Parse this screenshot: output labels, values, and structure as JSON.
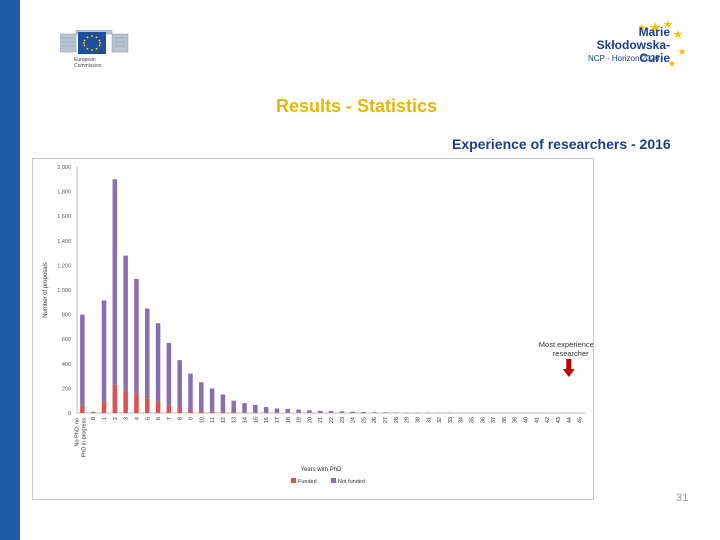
{
  "header": {
    "ec_logo_text": "European\nCommission",
    "msca_name_line1": "Marie",
    "msca_name_line2": "Skłodowska-Curie",
    "msca_sub": "NCP - Horizon 2020"
  },
  "page_title": "Results - Statistics",
  "page_number": "31",
  "colors": {
    "funded": "#d9534f",
    "not_funded": "#8a6fb0",
    "accent_blue": "#1f5aa6",
    "title_gold": "#e6b800"
  },
  "chart_data": {
    "type": "bar",
    "title": "Experience of researchers - 2016",
    "xlabel": "Years with PhD",
    "ylabel": "Number of proposals",
    "ylim": [
      0,
      2000
    ],
    "yticks": [
      0,
      200,
      400,
      600,
      800,
      1000,
      1200,
      1400,
      1600,
      1800,
      2000
    ],
    "stacked": true,
    "categories": [
      "No PhD, no PhD in progress",
      "0",
      "1",
      "2",
      "3",
      "4",
      "5",
      "6",
      "7",
      "8",
      "9",
      "10",
      "11",
      "12",
      "13",
      "14",
      "15",
      "16",
      "17",
      "18",
      "19",
      "20",
      "21",
      "22",
      "23",
      "24",
      "25",
      "26",
      "27",
      "28",
      "29",
      "30",
      "31",
      "32",
      "33",
      "34",
      "35",
      "36",
      "37",
      "38",
      "39",
      "40",
      "41",
      "42",
      "43",
      "44",
      "45"
    ],
    "series": [
      {
        "name": "Funded",
        "color": "#d9534f",
        "values": [
          60,
          5,
          95,
          230,
          180,
          160,
          120,
          90,
          60,
          45,
          30,
          20,
          15,
          10,
          8,
          6,
          5,
          4,
          3,
          2,
          2,
          1,
          1,
          1,
          1,
          0,
          0,
          0,
          0,
          0,
          0,
          0,
          0,
          0,
          0,
          0,
          0,
          0,
          0,
          0,
          0,
          0,
          0,
          0,
          0,
          0,
          0
        ]
      },
      {
        "name": "Not funded",
        "color": "#8a6fb0",
        "values": [
          740,
          5,
          820,
          1670,
          1100,
          930,
          730,
          640,
          510,
          385,
          290,
          230,
          185,
          140,
          92,
          74,
          60,
          44,
          34,
          31,
          26,
          21,
          17,
          15,
          12,
          10,
          8,
          6,
          5,
          4,
          3,
          3,
          2,
          2,
          2,
          1,
          1,
          1,
          1,
          1,
          1,
          1,
          1,
          0,
          0,
          1,
          0
        ]
      }
    ],
    "annotation": {
      "text": "Most experienced researcher",
      "category": "44"
    },
    "legend": [
      "Funded",
      "Not funded"
    ],
    "legend_position": "bottom",
    "grid": false
  }
}
